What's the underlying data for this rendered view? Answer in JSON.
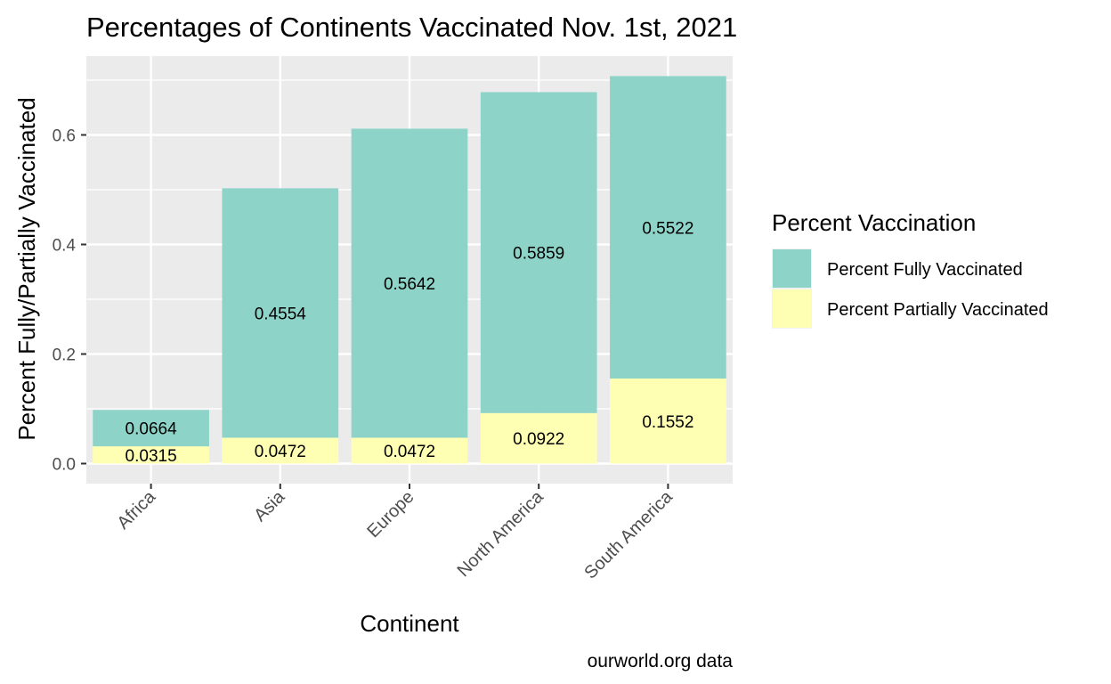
{
  "chart_data": {
    "type": "bar",
    "stacked": true,
    "title": "Percentages of Continents Vaccinated Nov. 1st, 2021",
    "xlabel": "Continent",
    "ylabel": "Percent Fully/Partially Vaccinated",
    "caption": "ourworld.org data",
    "categories": [
      "Africa",
      "Asia",
      "Europe",
      "North America",
      "South America"
    ],
    "ylim": [
      0,
      0.74
    ],
    "yticks": [
      0.0,
      0.2,
      0.4,
      0.6
    ],
    "ytick_labels": [
      "0.0",
      "0.2",
      "0.4",
      "0.6"
    ],
    "grid": true,
    "legend": {
      "title": "Percent Vaccination",
      "position": "right"
    },
    "series": [
      {
        "name": "Percent Partially Vaccinated",
        "color": "#FFFFB3",
        "values": [
          0.0315,
          0.0472,
          0.0472,
          0.0922,
          0.1552
        ],
        "labels": [
          "0.0315",
          "0.0472",
          "0.0472",
          "0.0922",
          "0.1552"
        ]
      },
      {
        "name": "Percent Fully Vaccinated",
        "color": "#8DD3C7",
        "values": [
          0.0664,
          0.4554,
          0.5642,
          0.5859,
          0.5522
        ],
        "labels": [
          "0.0664",
          "0.4554",
          "0.5642",
          "0.5859",
          "0.5522"
        ]
      }
    ],
    "legend_order": [
      "Percent Fully Vaccinated",
      "Percent Partially Vaccinated"
    ]
  }
}
